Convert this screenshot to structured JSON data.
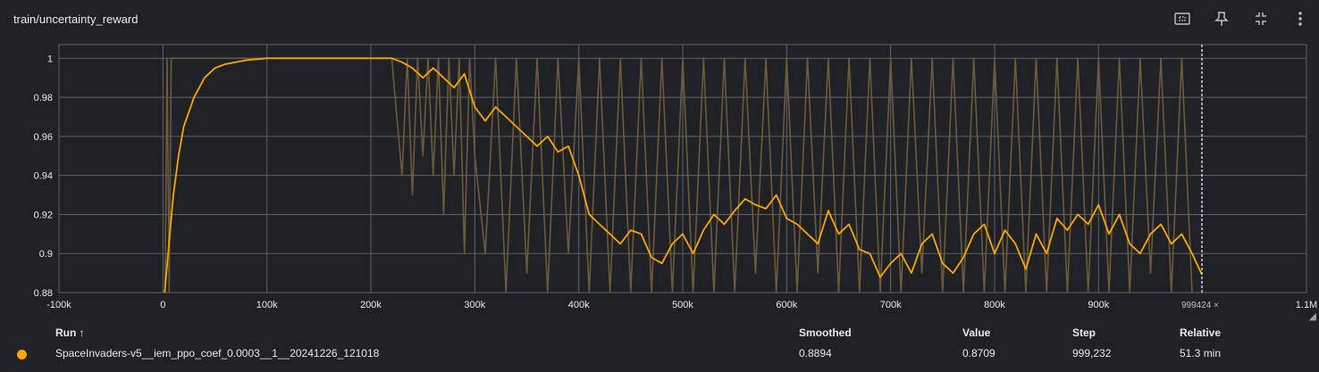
{
  "title": "train/uncertainty_reward",
  "toolbar": [
    {
      "name": "fit-domain-icon"
    },
    {
      "name": "pin-icon"
    },
    {
      "name": "collapse-icon"
    },
    {
      "name": "more-vert-icon"
    }
  ],
  "table": {
    "headers": {
      "run": "Run ↑",
      "smoothed": "Smoothed",
      "value": "Value",
      "step": "Step",
      "relative": "Relative"
    },
    "rows": [
      {
        "run": "SpaceInvaders-v5__iem_ppo_coef_0.0003__1__20241226_121018",
        "smoothed": "0.8894",
        "value": "0.8709",
        "step": "999,232",
        "relative": "51.3 min",
        "color": "#f7a700"
      }
    ]
  },
  "hover_step_label": "999424 ×",
  "chart_data": {
    "type": "line",
    "title": "train/uncertainty_reward",
    "xlim": [
      -100000,
      1100000
    ],
    "ylim": [
      0.88,
      1.007
    ],
    "x_ticks": [
      {
        "v": -100000,
        "label": "-100k"
      },
      {
        "v": 0,
        "label": "0"
      },
      {
        "v": 100000,
        "label": "100k"
      },
      {
        "v": 200000,
        "label": "200k"
      },
      {
        "v": 300000,
        "label": "300k"
      },
      {
        "v": 400000,
        "label": "400k"
      },
      {
        "v": 500000,
        "label": "500k"
      },
      {
        "v": 600000,
        "label": "600k"
      },
      {
        "v": 700000,
        "label": "700k"
      },
      {
        "v": 800000,
        "label": "800k"
      },
      {
        "v": 900000,
        "label": "900k"
      },
      {
        "v": 1100000,
        "label": "1.1M"
      }
    ],
    "y_ticks": [
      {
        "v": 0.88,
        "label": "0.88"
      },
      {
        "v": 0.9,
        "label": "0.9"
      },
      {
        "v": 0.92,
        "label": "0.92"
      },
      {
        "v": 0.94,
        "label": "0.94"
      },
      {
        "v": 0.96,
        "label": "0.96"
      },
      {
        "v": 0.98,
        "label": "0.98"
      },
      {
        "v": 1.0,
        "label": "1"
      }
    ],
    "grid": true,
    "hover_step": 999424,
    "series": [
      {
        "name": "SpaceInvaders-v5__iem_ppo_coef_0.0003__1__20241226_121018",
        "role": "smoothed",
        "color": "#f7a700",
        "x": [
          0,
          5000,
          10000,
          15000,
          20000,
          30000,
          40000,
          50000,
          60000,
          80000,
          100000,
          150000,
          200000,
          220000,
          230000,
          240000,
          250000,
          260000,
          270000,
          280000,
          290000,
          300000,
          310000,
          320000,
          330000,
          340000,
          350000,
          360000,
          370000,
          380000,
          390000,
          400000,
          410000,
          420000,
          430000,
          440000,
          450000,
          460000,
          470000,
          480000,
          490000,
          500000,
          510000,
          520000,
          530000,
          540000,
          550000,
          560000,
          570000,
          580000,
          590000,
          600000,
          610000,
          620000,
          630000,
          640000,
          650000,
          660000,
          670000,
          680000,
          690000,
          700000,
          710000,
          720000,
          730000,
          740000,
          750000,
          760000,
          770000,
          780000,
          790000,
          800000,
          810000,
          820000,
          830000,
          840000,
          850000,
          860000,
          870000,
          880000,
          890000,
          900000,
          910000,
          920000,
          930000,
          940000,
          950000,
          960000,
          970000,
          980000,
          990000,
          999232
        ],
        "y": [
          0.87,
          0.9,
          0.93,
          0.95,
          0.965,
          0.98,
          0.99,
          0.995,
          0.997,
          0.999,
          1.0,
          1.0,
          1.0,
          1.0,
          0.998,
          0.995,
          0.99,
          0.995,
          0.99,
          0.985,
          0.992,
          0.975,
          0.968,
          0.975,
          0.97,
          0.965,
          0.96,
          0.955,
          0.96,
          0.952,
          0.955,
          0.94,
          0.92,
          0.915,
          0.91,
          0.905,
          0.912,
          0.91,
          0.898,
          0.895,
          0.905,
          0.91,
          0.9,
          0.912,
          0.92,
          0.915,
          0.922,
          0.928,
          0.925,
          0.923,
          0.93,
          0.918,
          0.915,
          0.91,
          0.905,
          0.922,
          0.91,
          0.915,
          0.902,
          0.9,
          0.888,
          0.895,
          0.9,
          0.89,
          0.905,
          0.91,
          0.895,
          0.89,
          0.898,
          0.91,
          0.915,
          0.9,
          0.912,
          0.905,
          0.892,
          0.91,
          0.9,
          0.918,
          0.912,
          0.92,
          0.915,
          0.925,
          0.91,
          0.92,
          0.905,
          0.9,
          0.91,
          0.915,
          0.905,
          0.91,
          0.9,
          0.8894
        ]
      },
      {
        "name": "SpaceInvaders-v5__iem_ppo_coef_0.0003__1__20241226_121018",
        "role": "raw",
        "color": "#6b5a3e",
        "x": [
          2000,
          4000,
          6000,
          8000,
          220000,
          230000,
          235000,
          240000,
          245000,
          250000,
          255000,
          260000,
          265000,
          270000,
          275000,
          280000,
          285000,
          290000,
          295000,
          300000,
          310000,
          320000,
          330000,
          340000,
          350000,
          360000,
          370000,
          380000,
          390000,
          400000,
          410000,
          420000,
          430000,
          440000,
          450000,
          460000,
          470000,
          480000,
          490000,
          500000,
          510000,
          520000,
          530000,
          540000,
          550000,
          560000,
          570000,
          580000,
          590000,
          600000,
          610000,
          620000,
          630000,
          640000,
          650000,
          660000,
          670000,
          680000,
          690000,
          700000,
          710000,
          720000,
          730000,
          740000,
          750000,
          760000,
          770000,
          780000,
          790000,
          800000,
          810000,
          820000,
          830000,
          840000,
          850000,
          860000,
          870000,
          880000,
          890000,
          900000,
          910000,
          920000,
          930000,
          940000,
          950000,
          960000,
          970000,
          980000,
          990000,
          999232
        ],
        "y": [
          0.88,
          1.0,
          0.88,
          1.0,
          1.0,
          0.94,
          1.0,
          0.93,
          1.0,
          0.95,
          1.0,
          0.94,
          1.0,
          0.92,
          1.0,
          0.94,
          1.0,
          0.9,
          1.0,
          0.95,
          0.9,
          1.0,
          0.88,
          1.0,
          0.89,
          1.0,
          0.88,
          1.0,
          0.9,
          1.0,
          0.88,
          1.0,
          0.88,
          1.0,
          0.88,
          1.0,
          0.88,
          1.0,
          0.88,
          1.0,
          0.88,
          1.0,
          0.88,
          1.0,
          0.88,
          1.0,
          0.89,
          1.0,
          0.88,
          1.0,
          0.88,
          1.0,
          0.89,
          1.0,
          0.88,
          1.0,
          0.88,
          1.0,
          0.88,
          1.0,
          0.88,
          1.0,
          0.89,
          1.0,
          0.88,
          1.0,
          0.88,
          1.0,
          0.88,
          1.0,
          0.88,
          1.0,
          0.88,
          1.0,
          0.88,
          1.0,
          0.88,
          1.0,
          0.88,
          1.0,
          0.88,
          1.0,
          0.88,
          1.0,
          0.89,
          1.0,
          0.88,
          1.0,
          0.88,
          0.8709
        ]
      }
    ]
  }
}
